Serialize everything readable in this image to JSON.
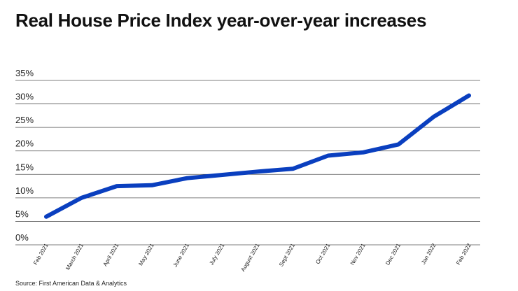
{
  "title": "Real House Price Index year-over-year increases",
  "source": "Source: First American Data & Analytics",
  "colors": {
    "line": "#0a3fbf",
    "grid": "#555555"
  },
  "chart_data": {
    "type": "line",
    "categories": [
      "Feb 2021",
      "March 2021",
      "April 2021",
      "May 2021",
      "June 2021",
      "July 2021",
      "August 2021",
      "Sept 2021",
      "Oct 2021",
      "Nov 2021",
      "Dec 2021",
      "Jan 2022",
      "Feb 2022"
    ],
    "values": [
      4.8,
      8.8,
      11.3,
      11.5,
      13.0,
      13.7,
      14.4,
      15.0,
      17.8,
      18.5,
      20.2,
      26.1,
      30.6
    ],
    "ylim": [
      0,
      35
    ],
    "yticks": [
      "0%",
      "5%",
      "10%",
      "15%",
      "20%",
      "25%",
      "30%",
      "35%"
    ],
    "grid": true,
    "legend": "none"
  }
}
